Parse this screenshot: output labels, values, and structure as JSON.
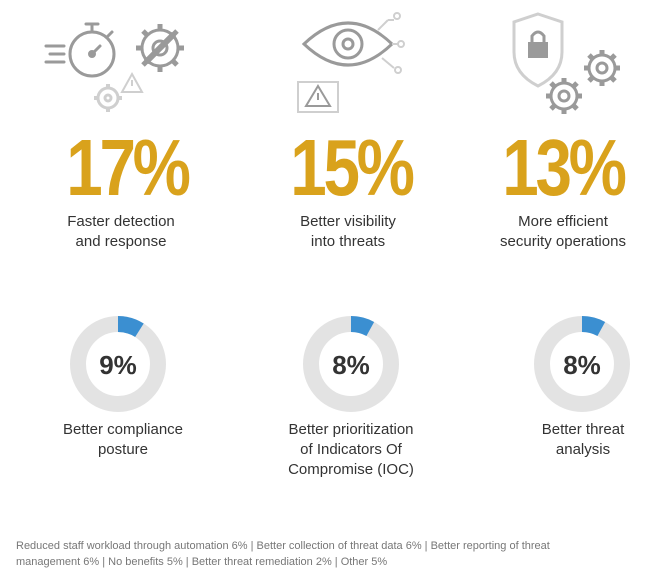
{
  "colors": {
    "gold": "#d9a21c",
    "blue": "#3b8fd1",
    "track": "#e3e3e3",
    "icon": "#9a9a9a"
  },
  "stats": [
    {
      "value": "17%",
      "label_line1": "Faster detection",
      "label_line2": "and response",
      "icon": "stopwatch-gears-icon"
    },
    {
      "value": "15%",
      "label_line1": "Better visibility",
      "label_line2": "into threats",
      "icon": "eye-warning-icon"
    },
    {
      "value": "13%",
      "label_line1": "More efficient",
      "label_line2": "security operations",
      "icon": "shield-lock-gears-icon"
    }
  ],
  "chart_data": {
    "type": "donut",
    "items": [
      {
        "label": "Better compliance posture",
        "percent": 9,
        "display": "9%",
        "label_lines": [
          "Better compliance",
          "posture"
        ]
      },
      {
        "label": "Better prioritization of Indicators Of Compromise (IOC)",
        "percent": 8,
        "display": "8%",
        "label_lines": [
          "Better prioritization",
          "of Indicators Of",
          "Compromise (IOC)"
        ]
      },
      {
        "label": "Better threat analysis",
        "percent": 8,
        "display": "8%",
        "label_lines": [
          "Better threat",
          "analysis"
        ]
      }
    ]
  },
  "footer": {
    "line1": "Reduced staff workload through automation 6%  |  Better collection of threat data 6%  |  Better reporting of threat",
    "line2": "management 6%  |  No benefits 5%  |  Better threat remediation 2%  |  Other 5%"
  }
}
